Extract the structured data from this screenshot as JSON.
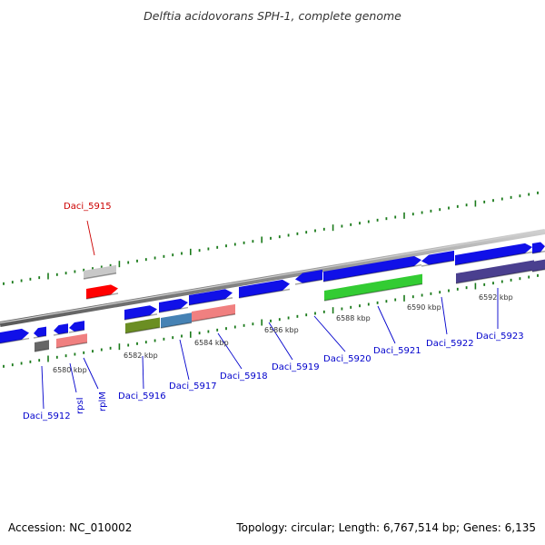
{
  "title": "Delftia acidovorans SPH-1, complete genome",
  "footer": {
    "accession": "Accession: NC_010002",
    "summary": "Topology: circular; Length: 6,767,514 bp; Genes: 6,135"
  },
  "colors": {
    "strand_line": "#808080",
    "tick": "#1a7a1a",
    "label_blue": "#0000cc",
    "label_red": "#cc0000"
  },
  "ticks": [
    {
      "label": "6580 kbp"
    },
    {
      "label": "6582 kbp"
    },
    {
      "label": "6584 kbp"
    },
    {
      "label": "6586 kbp"
    },
    {
      "label": "6588 kbp"
    },
    {
      "label": "6590 kbp"
    },
    {
      "label": "6592 kbp"
    }
  ],
  "gene_labels": [
    {
      "name": "Daci_5915",
      "color": "#cc0000"
    },
    {
      "name": "Daci_5912",
      "color": "#0000cc"
    },
    {
      "name": "rpsI",
      "color": "#0000cc"
    },
    {
      "name": "rplM",
      "color": "#0000cc"
    },
    {
      "name": "Daci_5916",
      "color": "#0000cc"
    },
    {
      "name": "Daci_5917",
      "color": "#0000cc"
    },
    {
      "name": "Daci_5918",
      "color": "#0000cc"
    },
    {
      "name": "Daci_5919",
      "color": "#0000cc"
    },
    {
      "name": "Daci_5920",
      "color": "#0000cc"
    },
    {
      "name": "Daci_5921",
      "color": "#0000cc"
    },
    {
      "name": "Daci_5922",
      "color": "#0000cc"
    },
    {
      "name": "Daci_5923",
      "color": "#0000cc"
    }
  ]
}
